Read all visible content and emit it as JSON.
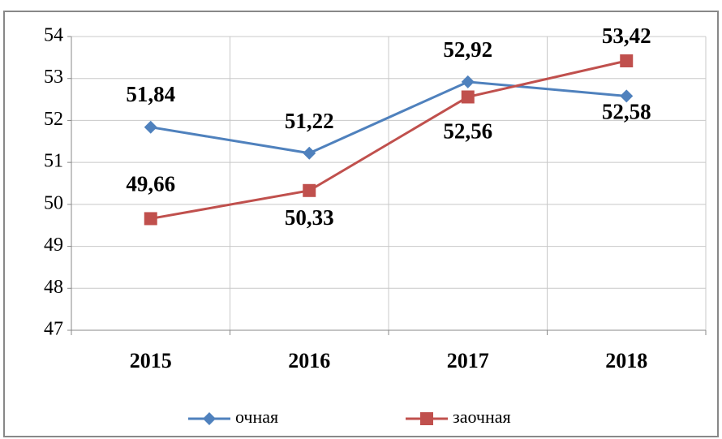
{
  "chart_data": {
    "type": "line",
    "categories": [
      "2015",
      "2016",
      "2017",
      "2018"
    ],
    "series": [
      {
        "name": "очная",
        "color": "#4f81bd",
        "values": [
          51.84,
          51.22,
          52.92,
          52.58
        ],
        "value_labels": [
          "51,84",
          "51,22",
          "52,92",
          "52,58"
        ]
      },
      {
        "name": "заочная",
        "color": "#c0504d",
        "values": [
          49.66,
          50.33,
          52.56,
          53.42
        ],
        "value_labels": [
          "49,66",
          "50,33",
          "52,56",
          "53,42"
        ]
      }
    ],
    "ylim": [
      47,
      54
    ],
    "yticks": [
      47,
      48,
      49,
      50,
      51,
      52,
      53,
      54
    ],
    "grid": true,
    "legend": "bottom"
  }
}
